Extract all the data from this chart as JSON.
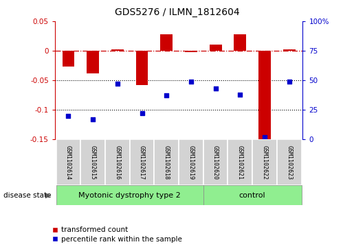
{
  "title": "GDS5276 / ILMN_1812604",
  "samples": [
    "GSM1102614",
    "GSM1102615",
    "GSM1102616",
    "GSM1102617",
    "GSM1102618",
    "GSM1102619",
    "GSM1102620",
    "GSM1102621",
    "GSM1102622",
    "GSM1102623"
  ],
  "red_values": [
    -0.027,
    -0.038,
    0.002,
    -0.058,
    0.028,
    -0.002,
    0.01,
    0.028,
    -0.152,
    0.002
  ],
  "blue_values": [
    0.2,
    0.17,
    0.47,
    0.22,
    0.37,
    0.49,
    0.43,
    0.38,
    0.02,
    0.49
  ],
  "group1_label": "Myotonic dystrophy type 2",
  "group1_count": 6,
  "group2_label": "control",
  "group2_count": 4,
  "disease_state_label": "disease state",
  "ylim_left": [
    -0.15,
    0.05
  ],
  "ylim_right": [
    0.0,
    1.0
  ],
  "yticks_left": [
    0.05,
    0.0,
    -0.05,
    -0.1,
    -0.15
  ],
  "ytick_labels_left": [
    "0.05",
    "0",
    "-0.05",
    "-0.1",
    "-0.15"
  ],
  "yticks_right": [
    1.0,
    0.75,
    0.5,
    0.25,
    0.0
  ],
  "ytick_labels_right": [
    "100%",
    "75",
    "50",
    "25",
    "0"
  ],
  "dotted_lines": [
    -0.05,
    -0.1
  ],
  "red_color": "#CC0000",
  "blue_color": "#0000CC",
  "green_color": "#90EE90",
  "gray_color": "#D3D3D3",
  "bar_width": 0.5,
  "legend_red": "transformed count",
  "legend_blue": "percentile rank within the sample"
}
